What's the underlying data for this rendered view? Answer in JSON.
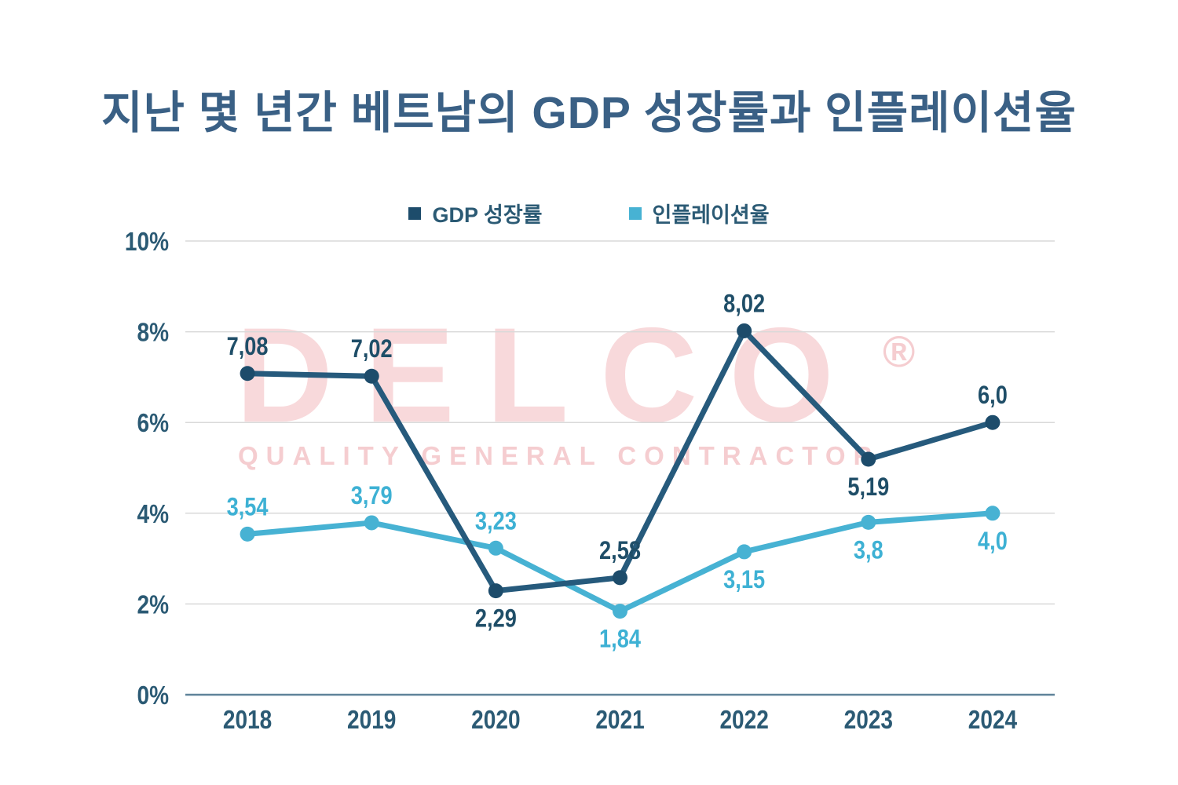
{
  "title": "지난 몇 년간 베트남의 GDP 성장률과 인플레이션율",
  "watermark": {
    "name": "DELCO",
    "registered": "®",
    "tagline": "QUALITY GENERAL CONTRACTOR"
  },
  "colors": {
    "title": "#3a6085",
    "axis_text": "#2b5a74",
    "grid": "#d9d9d9",
    "axis_line": "#5f8399",
    "gdp_line": "#265a7c",
    "gdp_marker": "#1d4c6b",
    "gdp_label": "#1f4e68",
    "inflation_line": "#47b2d3",
    "inflation_marker": "#47b2d3",
    "inflation_label": "#3eb1d4",
    "watermark_pink": "rgba(220,75,85,0.21)",
    "watermark_pink_strong": "rgba(220,75,85,0.28)"
  },
  "chart_data": {
    "type": "line",
    "title": "지난 몇 년간 베트남의 GDP 성장률과 인플레이션율",
    "xlabel": "",
    "ylabel": "",
    "categories": [
      "2018",
      "2019",
      "2020",
      "2021",
      "2022",
      "2023",
      "2024"
    ],
    "y_ticks": [
      "0%",
      "2%",
      "4%",
      "6%",
      "8%",
      "10%"
    ],
    "ylim": [
      0,
      10
    ],
    "grid": true,
    "legend_position": "top-center",
    "series": [
      {
        "name": "GDP 성장률",
        "color": "#265a7c",
        "marker_color": "#1d4c6b",
        "label_color": "#1f4e68",
        "values": [
          7.08,
          7.02,
          2.29,
          2.58,
          8.02,
          5.19,
          6.0
        ],
        "labels": [
          "7,08",
          "7,02",
          "2,29",
          "2,58",
          "8,02",
          "5,19",
          "6,0"
        ],
        "label_pos": [
          "above",
          "above",
          "below",
          "above",
          "above",
          "below",
          "above"
        ]
      },
      {
        "name": "인플레이션율",
        "color": "#47b2d3",
        "marker_color": "#47b2d3",
        "label_color": "#3eb1d4",
        "values": [
          3.54,
          3.79,
          3.23,
          1.84,
          3.15,
          3.8,
          4.0
        ],
        "labels": [
          "3,54",
          "3,79",
          "3,23",
          "1,84",
          "3,15",
          "3,8",
          "4,0"
        ],
        "label_pos": [
          "above",
          "above",
          "above",
          "below",
          "below",
          "below",
          "below"
        ]
      }
    ]
  }
}
